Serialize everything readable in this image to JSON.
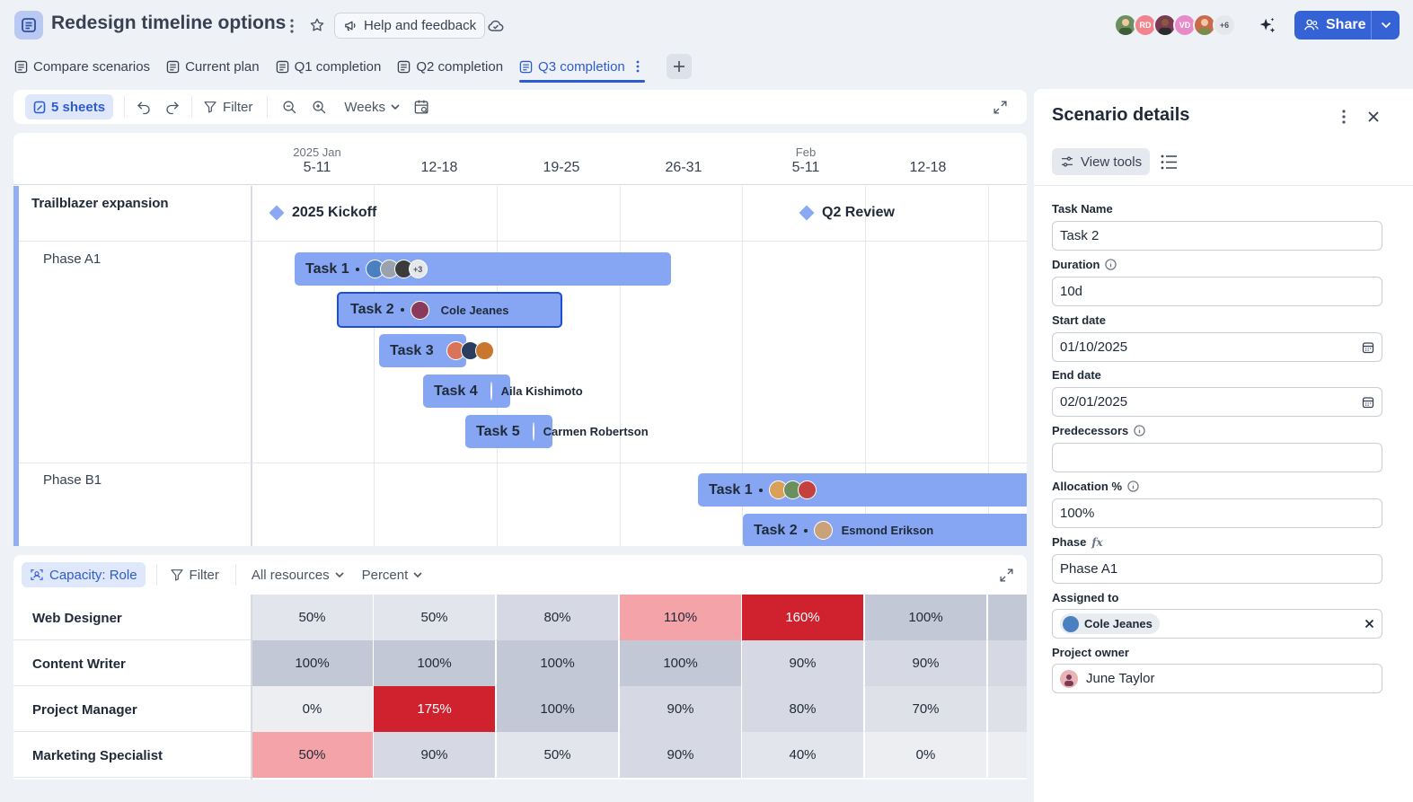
{
  "header": {
    "title": "Redesign timeline options",
    "help_label": "Help and feedback",
    "share_label": "Share",
    "avatars": [
      {
        "initials": "",
        "color": "#6b8f5e"
      },
      {
        "initials": "RD",
        "color": "#f0838c"
      },
      {
        "initials": "",
        "color": "#7a3b52"
      },
      {
        "initials": "VD",
        "color": "#e889c8"
      },
      {
        "initials": "",
        "color": "#c96a4a"
      },
      {
        "initials": "+6",
        "color": "#e5e7eb"
      }
    ]
  },
  "tabs": [
    {
      "label": "Compare scenarios"
    },
    {
      "label": "Current plan"
    },
    {
      "label": "Q1 completion"
    },
    {
      "label": "Q2 completion"
    },
    {
      "label": "Q3 completion"
    }
  ],
  "toolbar": {
    "sheets_label": "5 sheets",
    "filter_label": "Filter",
    "scale_label": "Weeks"
  },
  "timeline": {
    "columns": [
      {
        "month": "2025 Jan",
        "week": "5-11"
      },
      {
        "month": "",
        "week": "12-18"
      },
      {
        "month": "",
        "week": "19-25"
      },
      {
        "month": "",
        "week": "26-31"
      },
      {
        "month": "Feb",
        "week": "5-11"
      },
      {
        "month": "",
        "week": "12-18"
      }
    ],
    "project_name": "Trailblazer expansion",
    "milestones": [
      {
        "label": "2025 Kickoff"
      },
      {
        "label": "Q2 Review"
      }
    ],
    "phases": [
      {
        "name": "Phase A1"
      },
      {
        "name": "Phase B1"
      }
    ],
    "tasks": [
      {
        "label": "Task 1",
        "assignee": "",
        "more": "+3"
      },
      {
        "label": "Task 2",
        "assignee": "Cole Jeanes",
        "more": ""
      },
      {
        "label": "Task 3",
        "assignee": "",
        "more": ""
      },
      {
        "label": "Task 4",
        "assignee": "Aila Kishimoto",
        "more": ""
      },
      {
        "label": "Task 5",
        "assignee": "Carmen Robertson",
        "more": ""
      },
      {
        "label": "Task 1",
        "assignee": "",
        "more": ""
      },
      {
        "label": "Task 2",
        "assignee": "Esmond Erikson",
        "more": ""
      }
    ]
  },
  "capacity": {
    "view_label": "Capacity: Role",
    "filter_label": "Filter",
    "resources_label": "All resources",
    "unit_label": "Percent",
    "rows": [
      {
        "role": "Web Designer",
        "values": [
          "50%",
          "50%",
          "80%",
          "110%",
          "160%",
          "100%"
        ]
      },
      {
        "role": "Content Writer",
        "values": [
          "100%",
          "100%",
          "100%",
          "100%",
          "90%",
          "90%"
        ]
      },
      {
        "role": "Project Manager",
        "values": [
          "0%",
          "175%",
          "100%",
          "90%",
          "80%",
          "70%"
        ]
      },
      {
        "role": "Marketing Specialist",
        "values": [
          "50%",
          "90%",
          "50%",
          "90%",
          "40%",
          "0%"
        ]
      }
    ]
  },
  "panel": {
    "title": "Scenario details",
    "view_tools_label": "View tools",
    "fields": {
      "task_name": {
        "label": "Task Name",
        "value": "Task 2"
      },
      "duration": {
        "label": "Duration",
        "value": "10d"
      },
      "start_date": {
        "label": "Start date",
        "value": "01/10/2025"
      },
      "end_date": {
        "label": "End date",
        "value": "02/01/2025"
      },
      "predecessors": {
        "label": "Predecessors",
        "value": ""
      },
      "allocation": {
        "label": "Allocation %",
        "value": "100%"
      },
      "phase": {
        "label": "Phase",
        "value": "Phase A1"
      },
      "assigned_to": {
        "label": "Assigned to",
        "value": "Cole Jeanes"
      },
      "project_owner": {
        "label": "Project owner",
        "value": "June Taylor"
      }
    }
  },
  "colors": {
    "accent": "#3563d6",
    "task_bar": "#86a6f3",
    "over_high": "#d0212e",
    "over_low": "#f4a4a8"
  }
}
